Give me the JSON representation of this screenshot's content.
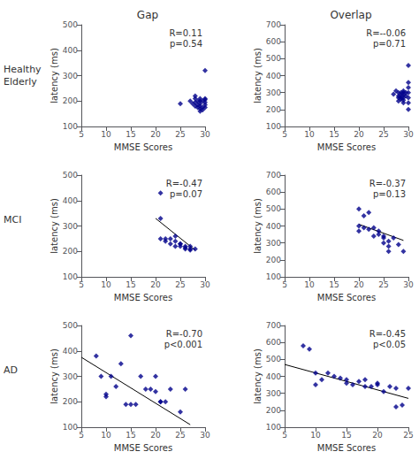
{
  "chart_data": [
    {
      "type": "scatter",
      "title": "Gap",
      "row_label": "Healthy\nElderly",
      "xlabel": "MMSE Scores",
      "ylabel": "latency (ms)",
      "xlim": [
        5,
        30
      ],
      "ylim": [
        100,
        500
      ],
      "xticks": [
        5,
        10,
        15,
        20,
        25,
        30
      ],
      "yticks": [
        100,
        200,
        300,
        400,
        500
      ],
      "grid": false,
      "annotation": "R=0.11\np=0.54",
      "series": [
        {
          "type": "scatter",
          "color": "#00008B",
          "marker": "diamond",
          "x": [
            25,
            27,
            27.5,
            28,
            28,
            28,
            28,
            28.5,
            28.5,
            28.5,
            29,
            29,
            29,
            29,
            29,
            29,
            29.5,
            29.5,
            29.5,
            30,
            30,
            30,
            30,
            30,
            30
          ],
          "values": [
            190,
            200,
            190,
            180,
            195,
            210,
            220,
            175,
            185,
            200,
            160,
            170,
            180,
            190,
            200,
            210,
            165,
            175,
            200,
            175,
            185,
            195,
            205,
            210,
            320
          ]
        }
      ]
    },
    {
      "type": "scatter",
      "title": "Overlap",
      "xlabel": "MMSE Scores",
      "ylabel": "latency (ms)",
      "xlim": [
        5,
        30
      ],
      "ylim": [
        100,
        700
      ],
      "xticks": [
        5,
        10,
        15,
        20,
        25,
        30
      ],
      "yticks": [
        100,
        200,
        300,
        400,
        500,
        600,
        700
      ],
      "grid": false,
      "annotation": "R=--0.06\np=0.71",
      "series": [
        {
          "type": "scatter",
          "color": "#00008B",
          "marker": "diamond",
          "x": [
            27,
            27.5,
            28,
            28,
            28,
            28,
            28.5,
            28.5,
            28.5,
            28.5,
            29,
            29,
            29,
            29,
            29,
            29,
            29.5,
            29.5,
            30,
            30,
            30,
            30,
            30,
            30,
            30
          ],
          "values": [
            290,
            310,
            250,
            270,
            280,
            300,
            260,
            270,
            285,
            300,
            240,
            255,
            270,
            285,
            300,
            310,
            280,
            300,
            200,
            240,
            270,
            300,
            330,
            360,
            460
          ]
        }
      ]
    },
    {
      "type": "scatter",
      "row_label": "MCI",
      "xlabel": "MMSE Scores",
      "ylabel": "latency (ms)",
      "xlim": [
        5,
        30
      ],
      "ylim": [
        100,
        500
      ],
      "xticks": [
        5,
        10,
        15,
        20,
        25,
        30
      ],
      "yticks": [
        100,
        200,
        300,
        400,
        500
      ],
      "grid": false,
      "annotation": "R=-0.47\np=0.07",
      "series": [
        {
          "type": "scatter",
          "color": "#00008B",
          "marker": "diamond",
          "x": [
            21,
            21,
            22,
            22,
            23,
            23,
            24,
            24,
            24,
            25,
            25,
            25,
            26,
            26,
            26,
            27,
            27,
            27,
            28,
            21
          ],
          "values": [
            430,
            250,
            240,
            250,
            250,
            230,
            260,
            240,
            220,
            230,
            220,
            230,
            220,
            215,
            210,
            220,
            205,
            210,
            210,
            330
          ]
        },
        {
          "type": "line",
          "color": "black",
          "line_style": "solid",
          "x": [
            20,
            28
          ],
          "values": [
            330,
            205
          ]
        }
      ]
    },
    {
      "type": "scatter",
      "xlabel": "MMSE Scores",
      "ylabel": "latency (ms)",
      "xlim": [
        5,
        30
      ],
      "ylim": [
        100,
        700
      ],
      "xticks": [
        5,
        10,
        15,
        20,
        25,
        30
      ],
      "yticks": [
        100,
        200,
        300,
        400,
        500,
        600,
        700
      ],
      "grid": false,
      "annotation": "R=-0.37\np=0.13",
      "series": [
        {
          "type": "scatter",
          "color": "#00008B",
          "marker": "diamond",
          "x": [
            20,
            20,
            21,
            21,
            22,
            22,
            23,
            23,
            24,
            24,
            25,
            25,
            25,
            26,
            26,
            26,
            27,
            28,
            29,
            20
          ],
          "values": [
            400,
            370,
            460,
            390,
            480,
            380,
            390,
            340,
            370,
            350,
            340,
            330,
            300,
            310,
            280,
            250,
            330,
            290,
            250,
            500
          ]
        },
        {
          "type": "line",
          "color": "black",
          "line_style": "solid",
          "x": [
            20,
            29
          ],
          "values": [
            410,
            315
          ]
        }
      ]
    },
    {
      "type": "scatter",
      "row_label": "AD",
      "xlabel": "MMSE Scores",
      "ylabel": "latency (ms)",
      "xlim": [
        5,
        30
      ],
      "ylim": [
        100,
        500
      ],
      "xticks": [
        5,
        10,
        15,
        20,
        25,
        30
      ],
      "yticks": [
        100,
        200,
        300,
        400,
        500
      ],
      "grid": false,
      "annotation": "R=-0.70\np<0.001",
      "series": [
        {
          "type": "scatter",
          "color": "#00008B",
          "marker": "diamond",
          "x": [
            8,
            9,
            10,
            10,
            11,
            12,
            13,
            14,
            15,
            15,
            16,
            17,
            18,
            19,
            20,
            20,
            21,
            21,
            22,
            23,
            25,
            26
          ],
          "values": [
            380,
            300,
            230,
            220,
            300,
            260,
            350,
            190,
            190,
            460,
            190,
            300,
            250,
            250,
            240,
            300,
            200,
            200,
            200,
            250,
            160,
            250
          ]
        },
        {
          "type": "line",
          "color": "black",
          "line_style": "solid",
          "x": [
            5,
            27
          ],
          "values": [
            375,
            110
          ]
        }
      ]
    },
    {
      "type": "scatter",
      "xlabel": "MMSE Scores",
      "ylabel": "latency (ms)",
      "xlim": [
        5,
        25
      ],
      "ylim": [
        100,
        700
      ],
      "xticks": [
        5,
        10,
        15,
        20,
        25
      ],
      "yticks": [
        100,
        200,
        300,
        400,
        500,
        600,
        700
      ],
      "grid": false,
      "annotation": "R=-0.45\np<0.05",
      "series": [
        {
          "type": "scatter",
          "color": "#00008B",
          "marker": "diamond",
          "x": [
            8,
            9,
            10,
            10,
            11,
            12,
            13,
            14,
            15,
            15,
            16,
            17,
            18,
            18,
            19,
            20,
            20,
            21,
            22,
            23,
            23,
            24,
            25
          ],
          "values": [
            580,
            560,
            350,
            420,
            380,
            420,
            400,
            390,
            380,
            360,
            350,
            370,
            380,
            340,
            340,
            350,
            360,
            310,
            340,
            330,
            220,
            230,
            330
          ]
        },
        {
          "type": "line",
          "color": "black",
          "line_style": "solid",
          "x": [
            5,
            25
          ],
          "values": [
            470,
            270
          ]
        }
      ]
    }
  ]
}
